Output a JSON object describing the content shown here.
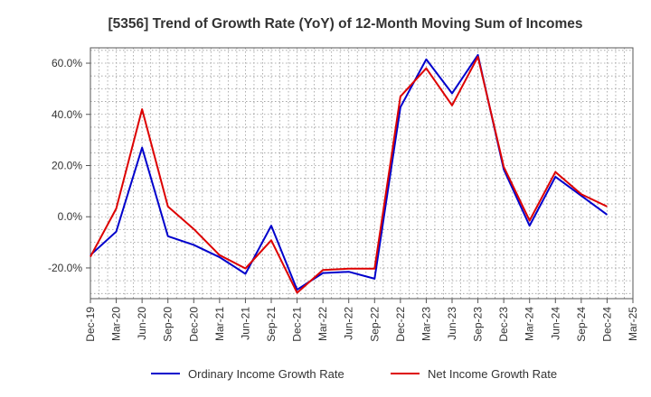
{
  "chart_data": {
    "type": "line",
    "title": "[5356]  Trend of Growth Rate (YoY) of 12-Month Moving Sum of Incomes",
    "xlabel": "",
    "ylabel": "",
    "x_tick_labels": [
      "Dec-19",
      "Mar-20",
      "Jun-20",
      "Sep-20",
      "Dec-20",
      "Mar-21",
      "Jun-21",
      "Sep-21",
      "Dec-21",
      "Mar-22",
      "Jun-22",
      "Sep-22",
      "Dec-22",
      "Mar-23",
      "Jun-23",
      "Sep-23",
      "Dec-23",
      "Mar-24",
      "Jun-24",
      "Sep-24",
      "Dec-24",
      "Mar-25"
    ],
    "y_ticks": [
      -20,
      0,
      20,
      40,
      60
    ],
    "y_tick_labels": [
      "-20.0%",
      "0.0%",
      "20.0%",
      "40.0%",
      "60.0%"
    ],
    "ylim": [
      -32,
      66
    ],
    "grid": true,
    "legend_position": "bottom",
    "series": [
      {
        "name": "Ordinary Income Growth Rate",
        "color": "#0000cc",
        "values": [
          -15.0,
          -5.8,
          27.0,
          -7.6,
          -11.0,
          -15.8,
          -22.3,
          -3.5,
          -28.5,
          -22.0,
          -21.5,
          -24.2,
          42.8,
          61.5,
          48.2,
          63.2,
          18.5,
          -3.5,
          15.6,
          8.2,
          0.8,
          null
        ]
      },
      {
        "name": "Net Income Growth Rate",
        "color": "#dd0000",
        "values": [
          -15.6,
          3.2,
          42.0,
          4.0,
          -4.8,
          -15.0,
          -20.2,
          -9.2,
          -29.7,
          -20.8,
          -20.3,
          -20.3,
          47.0,
          58.0,
          43.5,
          62.5,
          19.5,
          -1.5,
          17.5,
          8.8,
          4.0,
          null
        ]
      }
    ]
  }
}
